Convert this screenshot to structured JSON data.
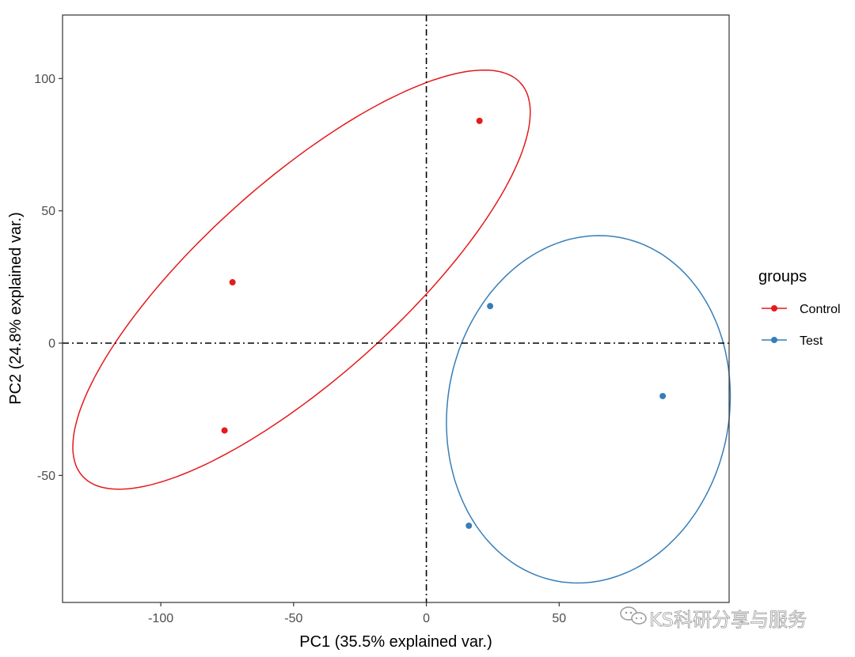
{
  "chart_data": {
    "type": "scatter",
    "xlabel": "PC1 (35.5% explained var.)",
    "ylabel": "PC2 (24.8% explained var.)",
    "xlim": [
      -137,
      114
    ],
    "ylim": [
      -98,
      124
    ],
    "x_ticks": [
      -100,
      -50,
      0,
      50
    ],
    "x_tick_labels": [
      "-100",
      "-50",
      "0",
      "50"
    ],
    "y_ticks": [
      100,
      50,
      0,
      -50
    ],
    "y_tick_labels": [
      "100",
      "50",
      "0",
      "-50"
    ],
    "grid": false,
    "reference_lines": {
      "x": 0,
      "y": 0,
      "style": "dot-dash"
    },
    "legend": {
      "title": "groups",
      "placement": "right"
    },
    "series": [
      {
        "name": "Control",
        "color": "#e41a1c",
        "points": [
          {
            "x": 20,
            "y": 84
          },
          {
            "x": -73,
            "y": 23
          },
          {
            "x": -76,
            "y": -33
          }
        ],
        "ellipse": {
          "center_x": -47,
          "center_y": 24,
          "semi_major": 111,
          "semi_minor": 37,
          "angle_deg": 42
        }
      },
      {
        "name": "Test",
        "color": "#377eb8",
        "points": [
          {
            "x": 24,
            "y": 14
          },
          {
            "x": 89,
            "y": -20
          },
          {
            "x": 16,
            "y": -69
          }
        ],
        "ellipse": {
          "center_x": 61,
          "center_y": -25,
          "semi_major": 66,
          "semi_minor": 53,
          "angle_deg": 80
        }
      }
    ]
  },
  "watermark": {
    "text": "KS科研分享与服务",
    "icon": "wechat-icon"
  }
}
